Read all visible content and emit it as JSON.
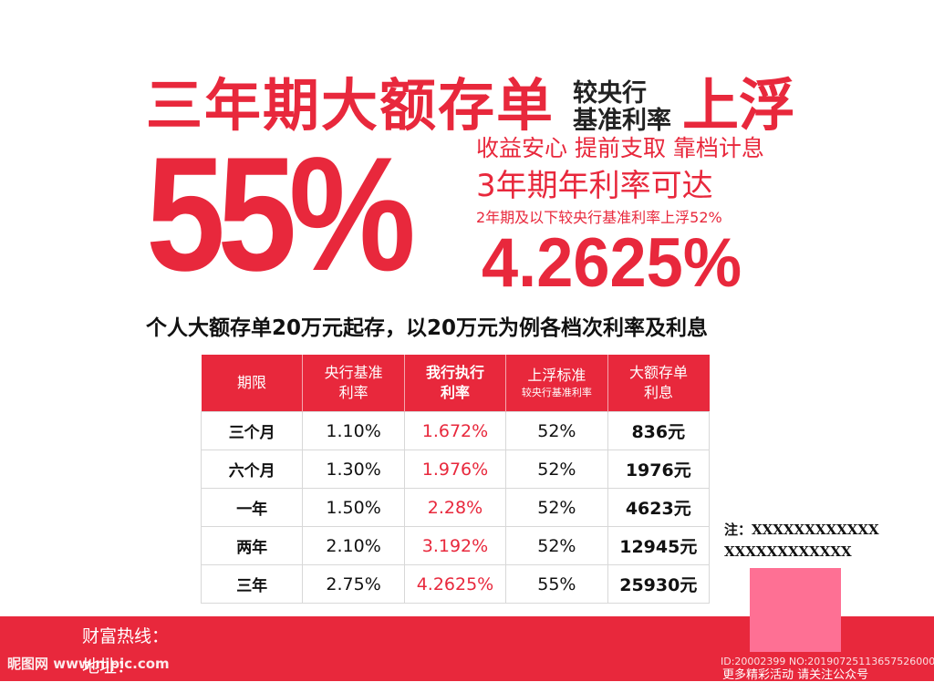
{
  "headline": {
    "main": "三年期大额存单",
    "small_line1": "较央行",
    "small_line2": "基准利率",
    "right": "上浮"
  },
  "big_rate": "55%",
  "features": "收益安心 提前支取 靠档计息",
  "annual_rate_label": "3年期年利率可达",
  "note_2yr": "2年期及以下较央行基准利率上浮52%",
  "annual_rate_value": "4.2625%",
  "subtitle": "个人大额存单20万元起存，以20万元为例各档次利率及利息",
  "table": {
    "headers": [
      {
        "line1": "期限",
        "line2": ""
      },
      {
        "line1": "央行基准",
        "line2": "利率"
      },
      {
        "line1": "我行执行",
        "line2": "利率"
      },
      {
        "line1": "上浮标准",
        "line2": "较央行基准利率"
      },
      {
        "line1": "大额存单",
        "line2": "利息"
      }
    ],
    "rows": [
      {
        "term": "三个月",
        "base": "1.10%",
        "bank": "1.672%",
        "float": "52%",
        "interest": "836元"
      },
      {
        "term": "六个月",
        "base": "1.30%",
        "bank": "1.976%",
        "float": "52%",
        "interest": "1976元"
      },
      {
        "term": "一年",
        "base": "1.50%",
        "bank": "2.28%",
        "float": "52%",
        "interest": "4623元"
      },
      {
        "term": "两年",
        "base": "2.10%",
        "bank": "3.192%",
        "float": "52%",
        "interest": "12945元"
      },
      {
        "term": "三年",
        "base": "2.75%",
        "bank": "4.2625%",
        "float": "55%",
        "interest": "25930元"
      }
    ]
  },
  "note": {
    "line1": "注：XXXXXXXXXXXX",
    "line2": "XXXXXXXXXXXX"
  },
  "footer": {
    "hotline": "财富热线：",
    "address": "地址：",
    "watermark_left": "昵图网 www.nipic.com",
    "watermark_id": "ID:20002399 NO:20190725113657526000",
    "follow_text": "更多精彩活动 请关注公众号"
  },
  "colors": {
    "accent": "#e8283c",
    "qr_placeholder": "#fe7094"
  }
}
